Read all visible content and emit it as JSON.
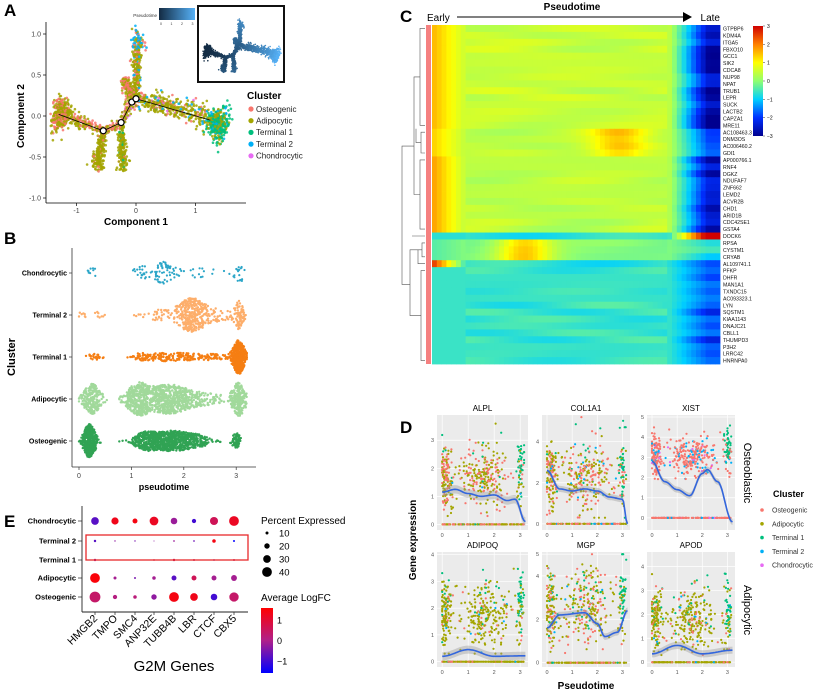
{
  "panel_labels": {
    "a": "A",
    "b": "B",
    "c": "C",
    "d": "D",
    "e": "E"
  },
  "palette": {
    "Osteogenic": "#f8766d",
    "Adipocytic": "#a3a500",
    "Terminal 1": "#00bf7d",
    "Terminal 2": "#00b0f6",
    "Chondrocytic": "#e76bf3"
  },
  "chart_data": [
    {
      "id": "A",
      "type": "scatter",
      "xlabel": "Component 1",
      "ylabel": "Component 2",
      "xticks": [
        -1,
        0,
        1
      ],
      "xtick_labels": [
        "-1",
        "0",
        "1"
      ],
      "yticks": [
        1,
        0.5,
        0,
        -0.5,
        -1
      ],
      "ytick_labels": [
        "1.0",
        "0.5",
        "0.0",
        "-0.5",
        "-1.0"
      ],
      "legend_title": "Cluster",
      "legend": [
        "Osteogenic",
        "Adipocytic",
        "Terminal 1",
        "Terminal 2",
        "Chondrocytic"
      ],
      "inset_colorbar": {
        "title": "Pseudotime",
        "ticks": [
          "0",
          "1",
          "2",
          "3"
        ]
      },
      "branch_nodes": [
        [
          -0.55,
          -0.18
        ],
        [
          -0.25,
          -0.08
        ],
        [
          -0.07,
          0.17
        ],
        [
          0.0,
          0.21
        ]
      ],
      "branches": [
        {
          "from": [
            -0.55,
            -0.18
          ],
          "to": [
            -1.1,
            -0.02
          ],
          "n": 150,
          "spread": 0.04,
          "t": [
            0.4,
            0.1
          ],
          "mix": {
            "Osteogenic": 0.3,
            "Adipocytic": 0.7
          }
        },
        {
          "from": [
            -1.15,
            0.0
          ],
          "to": [
            -1.35,
            0.05
          ],
          "n": 420,
          "spread": 0.09,
          "t": [
            0.1,
            0.0
          ],
          "mix": {
            "Osteogenic": 0.35,
            "Adipocytic": 0.65
          }
        },
        {
          "from": [
            -0.55,
            -0.18
          ],
          "to": [
            -0.65,
            -0.65
          ],
          "n": 220,
          "spread": 0.04,
          "t": [
            0.5,
            1.0
          ],
          "mix": {
            "Osteogenic": 0.1,
            "Adipocytic": 0.9
          }
        },
        {
          "from": [
            -0.25,
            -0.08
          ],
          "to": [
            -0.22,
            -0.65
          ],
          "n": 220,
          "spread": 0.04,
          "t": [
            0.9,
            1.4
          ],
          "mix": {
            "Osteogenic": 0.05,
            "Adipocytic": 0.85,
            "Terminal 1": 0.1
          }
        },
        {
          "from": [
            -0.55,
            -0.18
          ],
          "to": [
            -0.25,
            -0.08
          ],
          "n": 60,
          "spread": 0.03,
          "t": [
            0.5,
            0.9
          ],
          "mix": {
            "Osteogenic": 0.4,
            "Adipocytic": 0.6
          }
        },
        {
          "from": [
            -0.25,
            -0.08
          ],
          "to": [
            -0.03,
            0.2
          ],
          "n": 80,
          "spread": 0.03,
          "t": [
            0.9,
            1.2
          ],
          "mix": {
            "Osteogenic": 0.4,
            "Adipocytic": 0.5,
            "Chondrocytic": 0.1
          }
        },
        {
          "from": [
            -0.2,
            0.45
          ],
          "to": [
            -0.05,
            0.22
          ],
          "n": 160,
          "spread": 0.045,
          "t": [
            1.5,
            1.2
          ],
          "mix": {
            "Osteogenic": 0.4,
            "Adipocytic": 0.6
          }
        },
        {
          "from": [
            0.0,
            0.22
          ],
          "to": [
            0.02,
            0.85
          ],
          "n": 220,
          "spread": 0.035,
          "t": [
            1.2,
            2.0
          ],
          "mix": {
            "Osteogenic": 0.2,
            "Adipocytic": 0.7,
            "Terminal 2": 0.1
          }
        },
        {
          "from": [
            -0.05,
            0.85
          ],
          "to": [
            0.1,
            0.95
          ],
          "n": 70,
          "spread": 0.06,
          "t": [
            2.0,
            2.2
          ],
          "mix": {
            "Osteogenic": 0.3,
            "Adipocytic": 0.3,
            "Terminal 2": 0.4
          }
        },
        {
          "from": [
            0.0,
            0.21
          ],
          "to": [
            1.2,
            0.0
          ],
          "n": 380,
          "spread": 0.06,
          "t": [
            1.2,
            2.6
          ],
          "mix": {
            "Osteogenic": 0.15,
            "Adipocytic": 0.72,
            "Terminal 2": 0.1,
            "Chondrocytic": 0.03
          }
        },
        {
          "from": [
            1.25,
            -0.05
          ],
          "to": [
            1.5,
            -0.15
          ],
          "n": 380,
          "spread": 0.1,
          "t": [
            2.7,
            3.2
          ],
          "mix": {
            "Terminal 1": 0.55,
            "Adipocytic": 0.35,
            "Terminal 2": 0.1
          }
        }
      ]
    },
    {
      "id": "B",
      "type": "scatter",
      "xlabel": "pseudotime",
      "ylabel": "Cluster",
      "xticks": [
        0,
        1,
        2,
        3
      ],
      "xtick_labels": [
        "0",
        "1",
        "2",
        "3"
      ],
      "rows": [
        {
          "name": "Chondrocytic",
          "color": "#2ca6c8",
          "n": 130,
          "sparse": true,
          "components": [
            [
              0.25,
              0.05,
              0.05
            ],
            [
              1.2,
              0.15,
              0.2
            ],
            [
              1.65,
              0.12,
              0.4
            ],
            [
              2.3,
              0.3,
              0.2
            ],
            [
              3.05,
              0.05,
              0.15
            ]
          ]
        },
        {
          "name": "Terminal 2",
          "color": "#fdae6b",
          "n": 500,
          "components": [
            [
              0.2,
              0.15,
              0.03
            ],
            [
              1.5,
              0.2,
              0.07
            ],
            [
              2.15,
              0.18,
              0.65
            ],
            [
              2.6,
              0.2,
              0.1
            ],
            [
              3.05,
              0.06,
              0.15
            ]
          ]
        },
        {
          "name": "Terminal 1",
          "color": "#f57e13",
          "n": 700,
          "components": [
            [
              0.3,
              0.1,
              0.03
            ],
            [
              1.2,
              0.1,
              0.04
            ],
            [
              1.7,
              0.3,
              0.18
            ],
            [
              2.4,
              0.3,
              0.1
            ],
            [
              3.05,
              0.07,
              0.65
            ]
          ]
        },
        {
          "name": "Adipocytic",
          "color": "#a1d99b",
          "n": 1500,
          "components": [
            [
              0.25,
              0.1,
              0.15
            ],
            [
              1.15,
              0.15,
              0.25
            ],
            [
              1.7,
              0.25,
              0.35
            ],
            [
              2.3,
              0.3,
              0.1
            ],
            [
              3.05,
              0.08,
              0.15
            ]
          ]
        },
        {
          "name": "Osteogenic",
          "color": "#31a354",
          "n": 1500,
          "components": [
            [
              0.2,
              0.07,
              0.3
            ],
            [
              1.3,
              0.15,
              0.2
            ],
            [
              1.75,
              0.2,
              0.3
            ],
            [
              2.15,
              0.2,
              0.15
            ],
            [
              3.0,
              0.05,
              0.05
            ]
          ]
        }
      ]
    },
    {
      "id": "C",
      "type": "heatmap",
      "title": "Pseudotime",
      "start_label": "Early",
      "end_label": "Late",
      "colorbar_ticks": [
        3,
        2,
        1,
        0,
        -1,
        -2,
        -3
      ],
      "colorbar_labels": [
        "3",
        "2",
        "1",
        "0",
        "−1",
        "−2",
        "−3"
      ],
      "genes": [
        "GTPBP6",
        "KDM4A",
        "ITGA5",
        "FBXO10",
        "GCC1",
        "SIK2",
        "CDCA8",
        "NUP98",
        "NPAT",
        "TRUB1",
        "LEPR",
        "SUCK",
        "LACTB2",
        "CAPZA1",
        "MRE11",
        "AC108463.3",
        "DNM3OS",
        "AC006460.2",
        "GDI1",
        "AP000766.1",
        "RNF4",
        "DGKZ",
        "NDUFAF7",
        "ZNF662",
        "LEMD2",
        "ACVR2B",
        "CHD1",
        "ARID1B",
        "CDC42SE1",
        "GSTA4",
        "DOCK6",
        "RPSA",
        "CYSTM1",
        "CRYAB",
        "AL109741.1",
        "PFKP",
        "DHFR",
        "MAN1A1",
        "TXNDC15",
        "AC093323.1",
        "LYN",
        "SQSTM1",
        "KIAA1143",
        "DNAJC21",
        "CBLL1",
        "THUMPD3",
        "P3H2",
        "LRRC42",
        "HNRNPA0"
      ],
      "profile_groups": [
        {
          "rows": [
            0,
            14
          ],
          "early": 1.6,
          "mid": 0.5,
          "late": -2.7
        },
        {
          "rows": [
            15,
            18
          ],
          "early": 1.4,
          "mid": 0.4,
          "late": -1.8,
          "bump": [
            0.65,
            1.0
          ]
        },
        {
          "rows": [
            19,
            29
          ],
          "early": 1.8,
          "mid": 0.4,
          "late": -2.5
        },
        {
          "rows": [
            30,
            30
          ],
          "early": -0.7,
          "mid": -0.7,
          "late": 3.0
        },
        {
          "rows": [
            31,
            33
          ],
          "early": -0.4,
          "mid": -0.1,
          "late": -0.9,
          "bump": [
            0.32,
            1.5
          ]
        },
        {
          "rows": [
            34,
            34
          ],
          "early": 2.7,
          "mid": -0.7,
          "late": -1.6
        },
        {
          "rows": [
            35,
            48
          ],
          "early": -0.6,
          "mid": -0.6,
          "late": -1.9
        }
      ]
    },
    {
      "id": "D",
      "type": "scatter",
      "xlabel": "Pseudotime",
      "ylabel": "Gene expression",
      "row_labels": [
        "Osteoblastic",
        "Adipocytic"
      ],
      "legend_title": "Cluster",
      "legend": [
        "Osteogenic",
        "Adipocytic",
        "Terminal 1",
        "Terminal 2",
        "Chondrocytic"
      ],
      "xticks": [
        0,
        1,
        2,
        3
      ],
      "xlim": [
        -0.2,
        3.3
      ],
      "facets": [
        {
          "gene": "ALPL",
          "ylim": [
            -0.2,
            3.9
          ],
          "yticks": [
            0,
            1,
            2,
            3
          ],
          "mean": 1.7,
          "sd": 0.55,
          "mix": {
            "Osteogenic": 0.45,
            "Adipocytic": 0.5,
            "Terminal 1": 0.04,
            "Terminal 2": 0.01
          },
          "smooth": [
            [
              0,
              1.15
            ],
            [
              0.5,
              1.25
            ],
            [
              1,
              1.1
            ],
            [
              1.5,
              1.0
            ],
            [
              2,
              1.05
            ],
            [
              2.5,
              0.85
            ],
            [
              2.8,
              0.9
            ],
            [
              3.2,
              0.1
            ]
          ]
        },
        {
          "gene": "COL1A1",
          "ylim": [
            -0.3,
            5.3
          ],
          "yticks": [
            0,
            2,
            4
          ],
          "mean": 2.3,
          "sd": 0.8,
          "mix": {
            "Osteogenic": 0.45,
            "Adipocytic": 0.45,
            "Terminal 1": 0.05,
            "Terminal 2": 0.05
          },
          "smooth": [
            [
              0,
              2.6
            ],
            [
              0.5,
              1.7
            ],
            [
              1,
              1.6
            ],
            [
              1.5,
              1.7
            ],
            [
              2,
              1.6
            ],
            [
              2.5,
              1.3
            ],
            [
              3,
              1.2
            ],
            [
              3.2,
              0
            ]
          ]
        },
        {
          "gene": "XIST",
          "ylim": [
            -0.6,
            5.1
          ],
          "yticks": [
            0,
            1,
            2,
            3,
            4,
            5
          ],
          "mean": 3.1,
          "sd": 0.5,
          "mix": {
            "Osteogenic": 0.75,
            "Terminal 2": 0.2,
            "Chondrocytic": 0.05
          },
          "smooth": [
            [
              0,
              2.8
            ],
            [
              0.5,
              1.8
            ],
            [
              1,
              1.4
            ],
            [
              1.5,
              1.1
            ],
            [
              2,
              2.2
            ],
            [
              2.2,
              2.4
            ],
            [
              2.6,
              1.8
            ],
            [
              3.2,
              -0.2
            ]
          ]
        },
        {
          "gene": "ADIPOQ",
          "ylim": [
            -0.2,
            4.1
          ],
          "yticks": [
            0,
            1,
            2,
            3,
            4
          ],
          "mean": 1.7,
          "sd": 0.6,
          "mix": {
            "Adipocytic": 0.8,
            "Osteogenic": 0.12,
            "Terminal 1": 0.05,
            "Terminal 2": 0.03
          },
          "smooth": [
            [
              0,
              0.2
            ],
            [
              1,
              0.45
            ],
            [
              2,
              0.2
            ],
            [
              3.2,
              0.22
            ]
          ]
        },
        {
          "gene": "MGP",
          "ylim": [
            -0.2,
            5.1
          ],
          "yticks": [
            0,
            2,
            4,
            5
          ],
          "mean": 2.5,
          "sd": 0.9,
          "mix": {
            "Adipocytic": 0.6,
            "Osteogenic": 0.3,
            "Terminal 1": 0.08,
            "Terminal 2": 0.02
          },
          "smooth": [
            [
              0,
              1.6
            ],
            [
              0.5,
              2.2
            ],
            [
              1.5,
              2.3
            ],
            [
              2,
              1.8
            ],
            [
              2.3,
              1.2
            ],
            [
              2.8,
              1.4
            ],
            [
              3.2,
              2.4
            ]
          ]
        },
        {
          "gene": "APOD",
          "ylim": [
            -0.2,
            4.6
          ],
          "yticks": [
            0,
            1,
            2,
            3,
            4
          ],
          "mean": 1.7,
          "sd": 0.7,
          "mix": {
            "Adipocytic": 0.75,
            "Osteogenic": 0.15,
            "Terminal 1": 0.07,
            "Terminal 2": 0.03
          },
          "smooth": [
            [
              0,
              0.35
            ],
            [
              1,
              0.7
            ],
            [
              2,
              0.35
            ],
            [
              3.2,
              0.5
            ]
          ]
        }
      ]
    },
    {
      "id": "E",
      "type": "scatter",
      "xlabel": "G2M Genes",
      "genes": [
        "HMGB2",
        "TMPO",
        "SMC4",
        "ANP32E",
        "TUBB4B",
        "LBR",
        "CTCF",
        "CBX5"
      ],
      "clusters": [
        "Chondrocytic",
        "Terminal 2",
        "Terminal 1",
        "Adipocytic",
        "Osteogenic"
      ],
      "percent_expressed": [
        [
          30,
          28,
          18,
          35,
          25,
          15,
          32,
          40
        ],
        [
          8,
          4,
          4,
          3,
          5,
          5,
          12,
          6
        ],
        [
          8,
          3,
          3,
          5,
          8,
          6,
          5,
          6
        ],
        [
          40,
          10,
          6,
          12,
          18,
          18,
          18,
          22
        ],
        [
          45,
          15,
          12,
          20,
          40,
          30,
          25,
          38
        ]
      ],
      "avg_logfc": [
        [
          -0.8,
          1.3,
          1.4,
          1.2,
          -0.2,
          -1.0,
          0.6,
          1.2
        ],
        [
          -0.8,
          -0.3,
          -0.5,
          -0.3,
          -0.2,
          -0.6,
          1.4,
          -1.6
        ],
        [
          -0.2,
          -0.3,
          -0.4,
          0.3,
          0.4,
          0.2,
          -0.6,
          0.2
        ],
        [
          1.5,
          -0.1,
          -0.5,
          -0.1,
          -0.8,
          0.6,
          -0.1,
          -0.1
        ],
        [
          0.4,
          0.1,
          0.2,
          -0.3,
          1.4,
          1.3,
          -1.0,
          0.4
        ]
      ],
      "highlight_clusters": [
        "Terminal 2",
        "Terminal 1"
      ],
      "size_legend_title": "Percent Expressed",
      "size_legend": [
        10,
        20,
        30,
        40
      ],
      "size_legend_labels": [
        "10",
        "20",
        "30",
        "40"
      ],
      "color_legend_title": "Average LogFC",
      "color_legend_ticks": [
        1,
        0,
        -1
      ],
      "color_legend_labels": [
        "1",
        "0",
        "−1"
      ],
      "color_range": [
        -1.6,
        1.6
      ],
      "highlight_color": "#e8292b"
    }
  ]
}
